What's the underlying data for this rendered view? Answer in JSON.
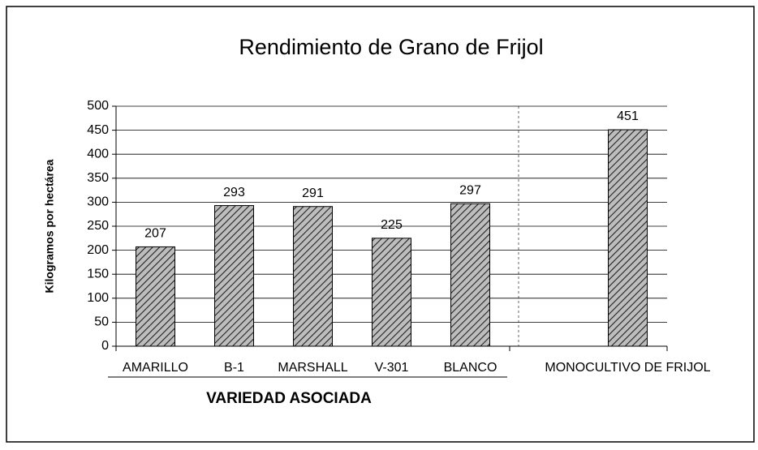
{
  "chart_data": {
    "type": "bar",
    "title": "Rendimiento de Grano de Frijol",
    "y_label": "Kilogramos por hectárea",
    "group_label": "VARIEDAD ASOCIADA",
    "categories": [
      "AMARILLO",
      "B-1",
      "MARSHALL",
      "V-301",
      "BLANCO",
      null,
      "MONOCULTIVO DE FRIJOL"
    ],
    "values": [
      207,
      293,
      291,
      225,
      297,
      null,
      451
    ],
    "color": "#808080",
    "ylim": [
      0,
      500
    ],
    "yticks": [
      0,
      50,
      100,
      150,
      200,
      250,
      300,
      350,
      400,
      450,
      500
    ],
    "grid": true
  }
}
